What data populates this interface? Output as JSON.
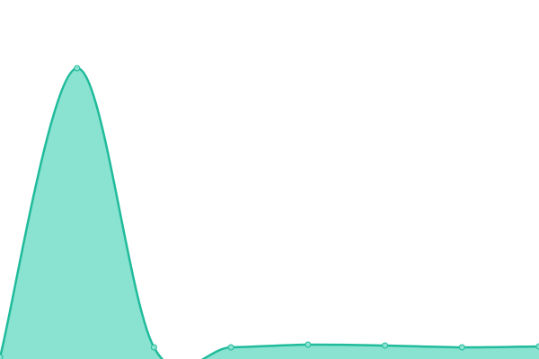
{
  "chart_data": {
    "type": "area",
    "categories": [
      null,
      null,
      null,
      null,
      null,
      null,
      null,
      null
    ],
    "series": [
      {
        "color": "#1fbb9b",
        "values": [
          0.5,
          81,
          3.25,
          3.25,
          4,
          3.75,
          3.25,
          3.5
        ]
      }
    ],
    "ylim": [
      0,
      100
    ]
  }
}
